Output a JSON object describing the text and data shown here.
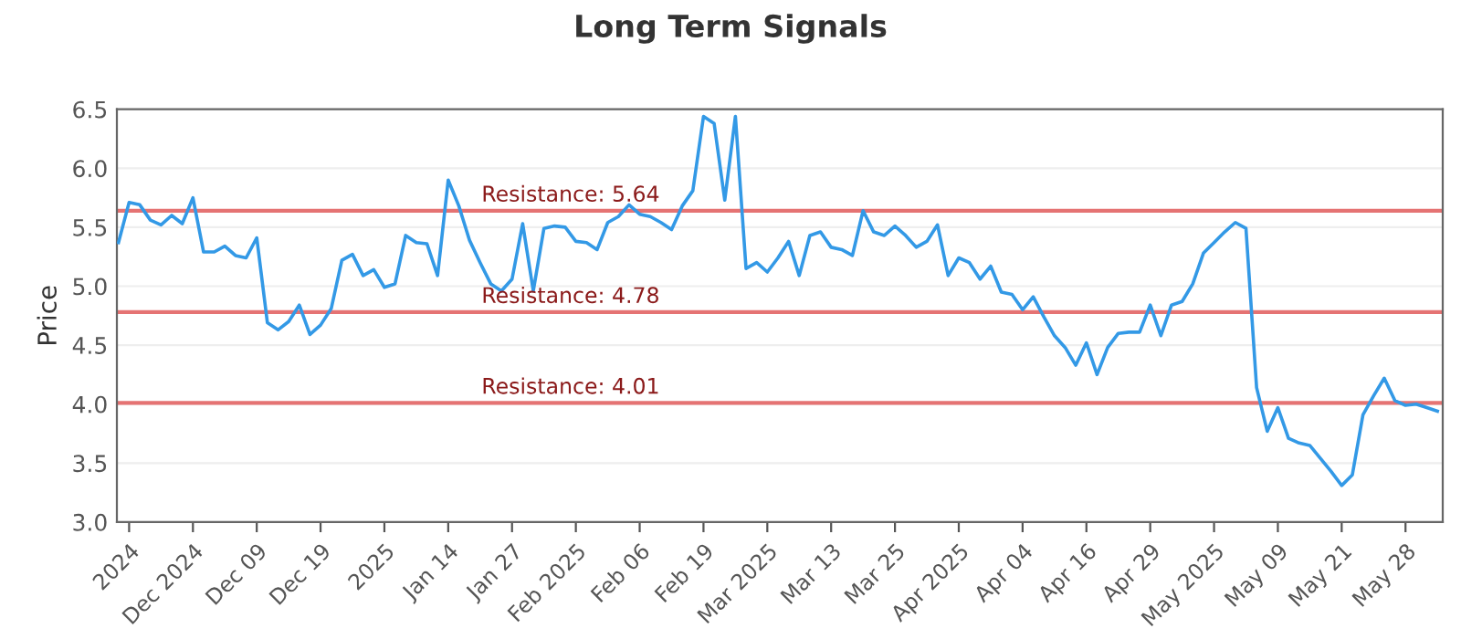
{
  "chart_data": {
    "type": "line",
    "title": "Long Term Signals",
    "ylabel": "Price",
    "categories": [
      null,
      "2024",
      null,
      null,
      null,
      null,
      null,
      "Dec 2024",
      null,
      null,
      null,
      null,
      null,
      "Dec 09",
      null,
      null,
      null,
      null,
      null,
      "Dec 19",
      null,
      null,
      null,
      null,
      null,
      "2025",
      null,
      null,
      null,
      null,
      null,
      "Jan 14",
      null,
      null,
      null,
      null,
      null,
      "Jan 27",
      null,
      null,
      null,
      null,
      null,
      "Feb 2025",
      null,
      null,
      null,
      null,
      null,
      "Feb 06",
      null,
      null,
      null,
      null,
      null,
      "Feb 19",
      null,
      null,
      null,
      null,
      null,
      "Mar 2025",
      null,
      null,
      null,
      null,
      null,
      "Mar 13",
      null,
      null,
      null,
      null,
      null,
      "Mar 25",
      null,
      null,
      null,
      null,
      null,
      "Apr 2025",
      null,
      null,
      null,
      null,
      null,
      "Apr 04",
      null,
      null,
      null,
      null,
      null,
      "Apr 16",
      null,
      null,
      null,
      null,
      null,
      "Apr 29",
      null,
      null,
      null,
      null,
      null,
      "May 2025",
      null,
      null,
      null,
      null,
      null,
      "May 09",
      null,
      null,
      null,
      null,
      null,
      "May 21",
      null,
      null,
      null,
      null,
      null,
      "May 28",
      null,
      null,
      null
    ],
    "series": [
      {
        "color": "#3399e6",
        "values": [
          5.37,
          5.71,
          5.69,
          5.56,
          5.52,
          5.6,
          5.53,
          5.75,
          5.29,
          5.29,
          5.34,
          5.26,
          5.24,
          5.41,
          4.69,
          4.63,
          4.7,
          4.84,
          4.59,
          4.67,
          4.81,
          5.22,
          5.27,
          5.09,
          5.14,
          4.99,
          5.02,
          5.43,
          5.37,
          5.36,
          5.09,
          5.9,
          5.68,
          5.39,
          5.2,
          5.02,
          4.96,
          5.06,
          5.53,
          4.96,
          5.49,
          5.51,
          5.5,
          5.38,
          5.37,
          5.31,
          5.54,
          5.59,
          5.69,
          5.61,
          5.59,
          5.54,
          5.48,
          5.68,
          5.81,
          6.44,
          6.38,
          5.73,
          6.44,
          5.15,
          5.2,
          5.12,
          5.24,
          5.38,
          5.09,
          5.43,
          5.46,
          5.33,
          5.31,
          5.26,
          5.64,
          5.46,
          5.43,
          5.51,
          5.43,
          5.33,
          5.38,
          5.52,
          5.09,
          5.24,
          5.2,
          5.06,
          5.17,
          4.95,
          4.93,
          4.8,
          4.91,
          4.74,
          4.58,
          4.48,
          4.33,
          4.52,
          4.25,
          4.48,
          4.6,
          4.61,
          4.61,
          4.84,
          4.58,
          4.84,
          4.87,
          5.02,
          5.28,
          5.37,
          5.46,
          5.54,
          5.49,
          4.14,
          3.77,
          3.97,
          3.71,
          3.67,
          3.65,
          3.54,
          3.43,
          3.31,
          3.4,
          3.91,
          4.07,
          4.22,
          4.03,
          3.99,
          4.0,
          3.97,
          3.94
        ]
      }
    ],
    "ylim": [
      3.0,
      6.5
    ],
    "yticks": [
      {
        "value": 3,
        "label": "3.0"
      },
      3.5,
      {
        "value": 4,
        "label": "4.0"
      },
      4.5,
      {
        "value": 5,
        "label": "5.0"
      },
      5.5,
      {
        "value": 6,
        "label": "6.0"
      },
      6.5
    ],
    "grid": "y",
    "legend": false,
    "marker": "none",
    "line_style": "solid",
    "ref_lines": [
      {
        "axis": "y",
        "value": 5.64,
        "label": "Resistance: 5.64",
        "color": "#e57373"
      },
      {
        "axis": "y",
        "value": 4.78,
        "label": "Resistance: 4.78",
        "color": "#e57373"
      },
      {
        "axis": "y",
        "value": 4.01,
        "label": "Resistance: 4.01",
        "color": "#e57373"
      }
    ]
  }
}
